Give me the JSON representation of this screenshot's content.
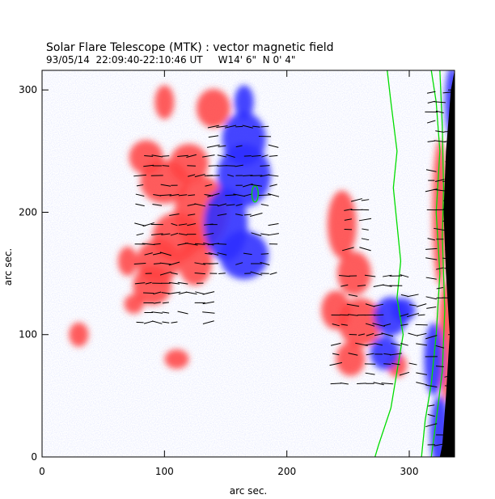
{
  "chart_data": {
    "type": "heatmap",
    "title": "Solar Flare Telescope (MTK) : vector magnetic field",
    "subtitle": "93/05/14  22:09:40-22:10:46 UT     W14' 6\"  N 0' 4\"",
    "xlabel": "arc sec.",
    "ylabel": "arc sec.",
    "xlim": [
      0,
      337
    ],
    "ylim": [
      0,
      316
    ],
    "xticks": [
      0,
      100,
      200,
      300
    ],
    "yticks": [
      0,
      100,
      200,
      300
    ],
    "colors": {
      "positive_polarity": "#ff4040",
      "negative_polarity": "#3030ff",
      "contour": "#00dd00",
      "limb": "#000000",
      "vectors": "#000000"
    }
  }
}
